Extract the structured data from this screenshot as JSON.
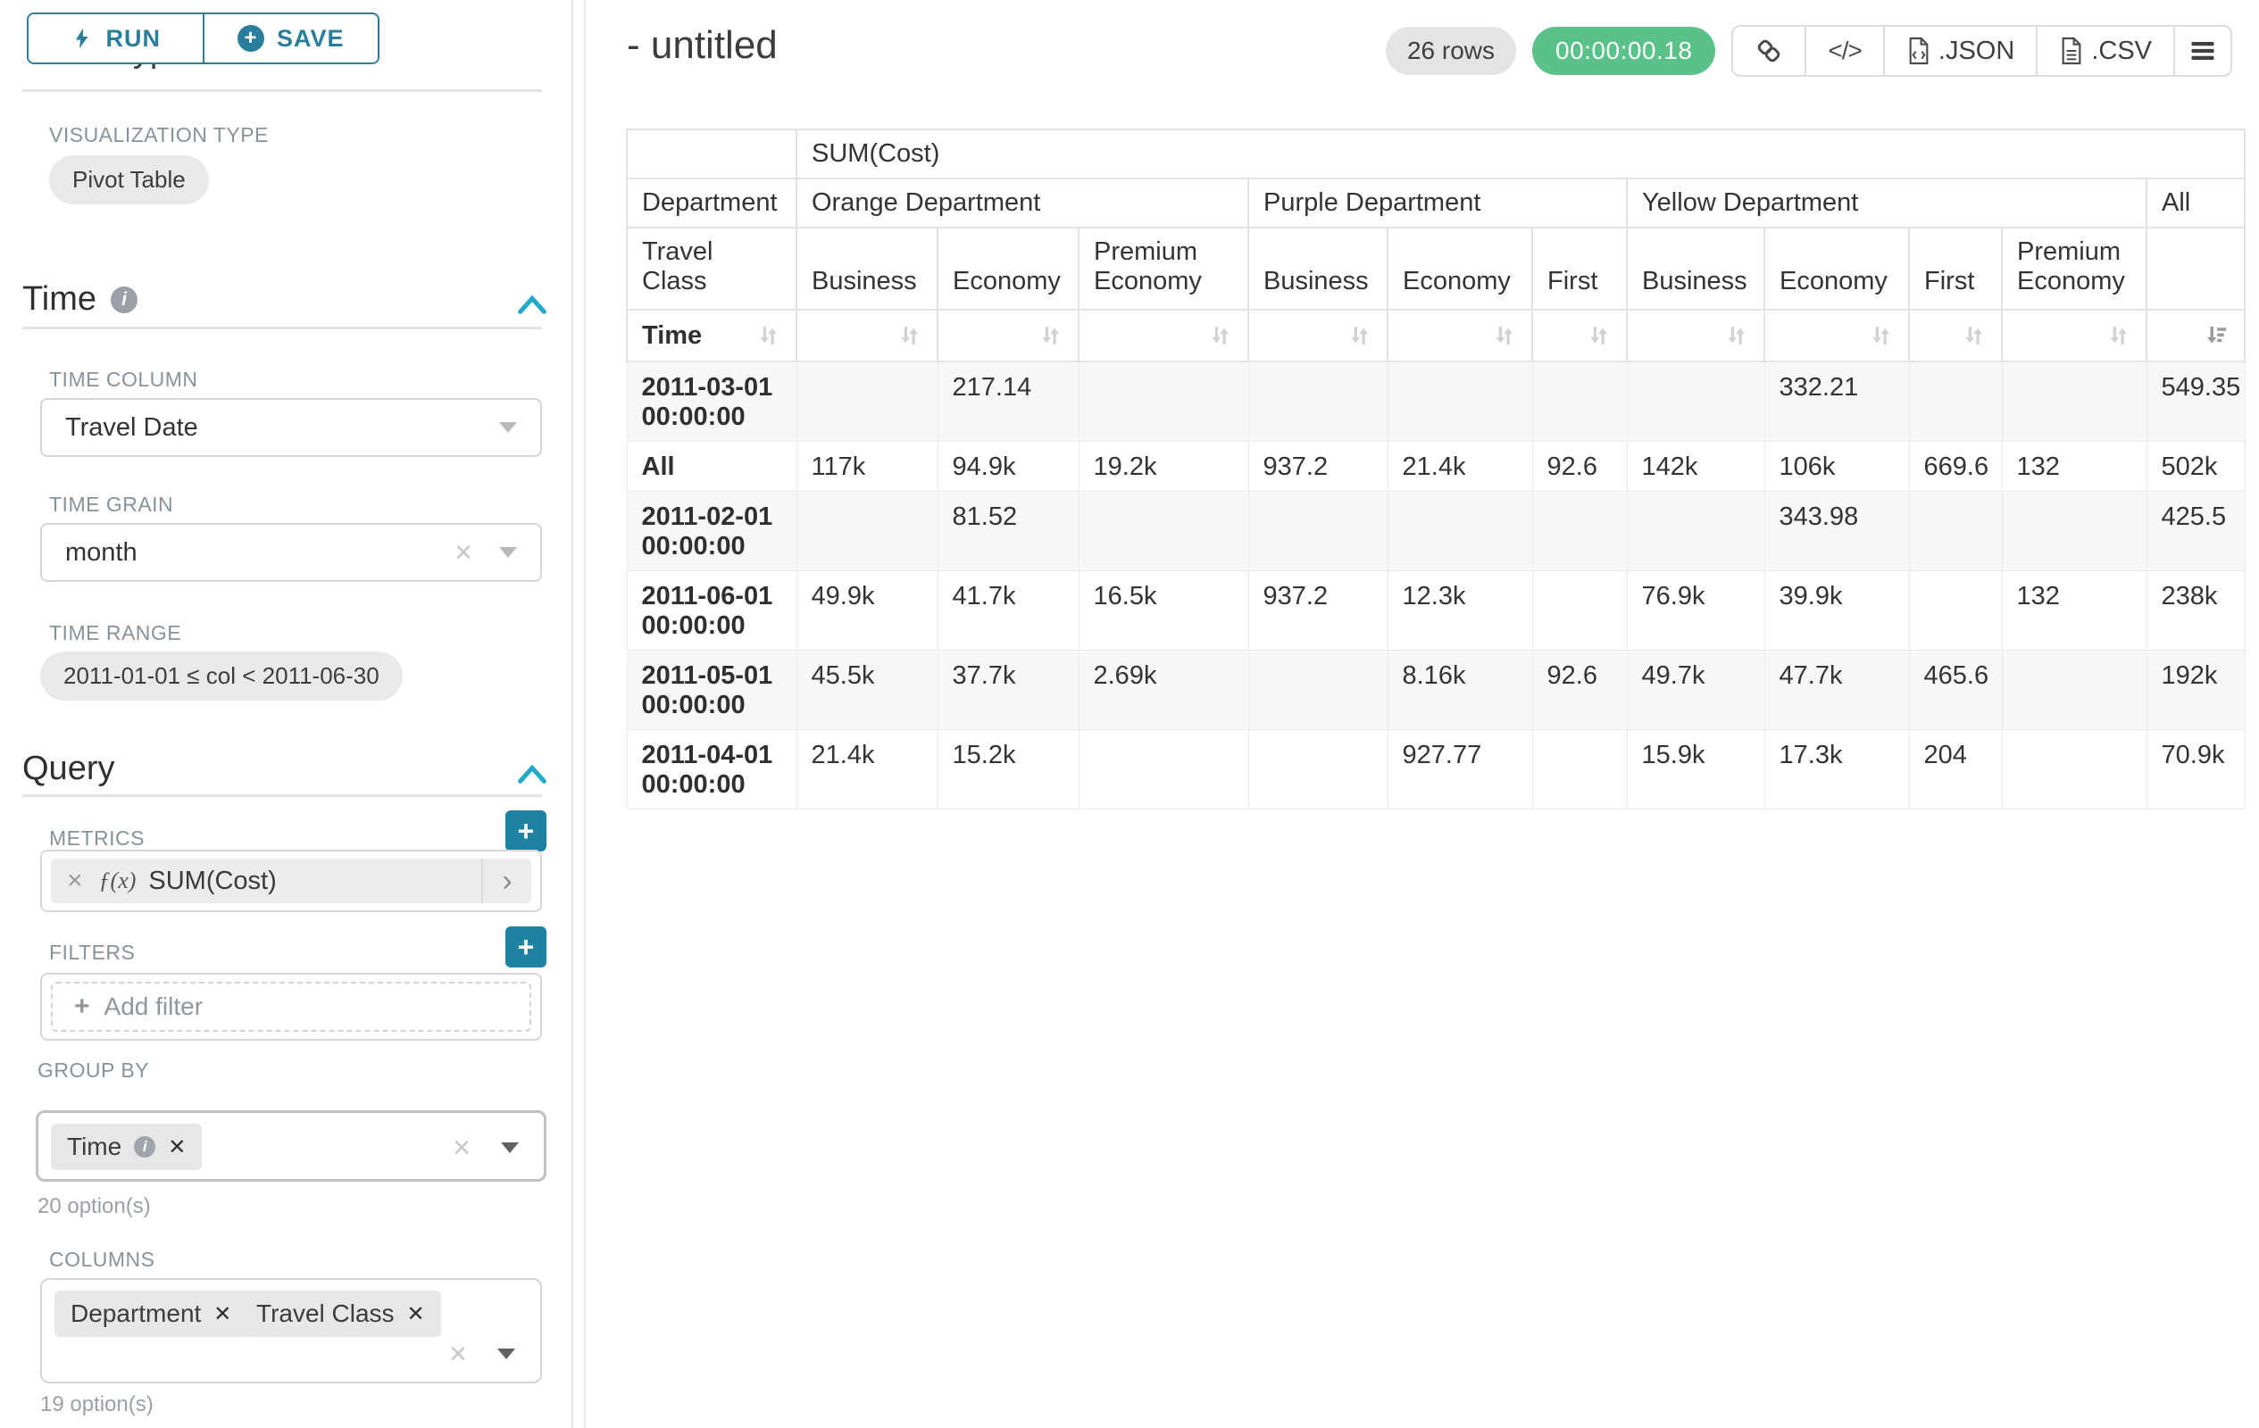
{
  "colors": {
    "accent_teal": "#2a7e9d",
    "accent_bright": "#1fa8c9",
    "success_green": "#5ac189",
    "chip_gray": "#e7e7e7",
    "stripe_gray": "#f7f7f7"
  },
  "left_panel": {
    "run_label": "RUN",
    "save_label": "SAVE",
    "chart_type_heading": "Chart Type",
    "viz_type_label": "VISUALIZATION TYPE",
    "viz_type_value": "Pivot Table",
    "time_section": {
      "title": "Time",
      "time_column_label": "TIME COLUMN",
      "time_column_value": "Travel Date",
      "time_grain_label": "TIME GRAIN",
      "time_grain_value": "month",
      "time_range_label": "TIME RANGE",
      "time_range_value": "2011-01-01 ≤ col < 2011-06-30"
    },
    "query_section": {
      "title": "Query",
      "metrics_label": "METRICS",
      "metric_prefix": "ƒ(x)",
      "metric_value": "SUM(Cost)",
      "filters_label": "FILTERS",
      "add_filter_label": "Add filter",
      "group_by_label": "GROUP BY",
      "group_by_chip": "Time",
      "group_by_options": "20 option(s)",
      "columns_label": "COLUMNS",
      "columns_chips": [
        "Department",
        "Travel Class"
      ],
      "columns_options": "19 option(s)"
    }
  },
  "header": {
    "title": "- untitled",
    "row_count": "26 rows",
    "query_time": "00:00:00.18",
    "code_glyph": "</>",
    "export_json_label": ".JSON",
    "export_csv_label": ".CSV"
  },
  "table": {
    "metric_header": "SUM(Cost)",
    "corner_row2": "Department",
    "corner_row3": "Travel Class",
    "corner_row4": "Time",
    "groups": [
      {
        "label": "Orange Department",
        "span": 3
      },
      {
        "label": "Purple Department",
        "span": 3
      },
      {
        "label": "Yellow Department",
        "span": 4
      },
      {
        "label": "All",
        "span": 1
      }
    ],
    "classes": [
      "Business",
      "Economy",
      "Premium Economy",
      "Business",
      "Economy",
      "First",
      "Business",
      "Economy",
      "First",
      "Premium Economy",
      ""
    ],
    "rows": [
      {
        "label": "2011-03-01 00:00:00",
        "cells": [
          "",
          "217.14",
          "",
          "",
          "",
          "",
          "",
          "332.21",
          "",
          "",
          "549.35"
        ]
      },
      {
        "label": "All",
        "cells": [
          "117k",
          "94.9k",
          "19.2k",
          "937.2",
          "21.4k",
          "92.6",
          "142k",
          "106k",
          "669.6",
          "132",
          "502k"
        ]
      },
      {
        "label": "2011-02-01 00:00:00",
        "cells": [
          "",
          "81.52",
          "",
          "",
          "",
          "",
          "",
          "343.98",
          "",
          "",
          "425.5"
        ]
      },
      {
        "label": "2011-06-01 00:00:00",
        "cells": [
          "49.9k",
          "41.7k",
          "16.5k",
          "937.2",
          "12.3k",
          "",
          "76.9k",
          "39.9k",
          "",
          "132",
          "238k"
        ]
      },
      {
        "label": "2011-05-01 00:00:00",
        "cells": [
          "45.5k",
          "37.7k",
          "2.69k",
          "",
          "8.16k",
          "92.6",
          "49.7k",
          "47.7k",
          "465.6",
          "",
          "192k"
        ]
      },
      {
        "label": "2011-04-01 00:00:00",
        "cells": [
          "21.4k",
          "15.2k",
          "",
          "",
          "927.77",
          "",
          "15.9k",
          "17.3k",
          "204",
          "",
          "70.9k"
        ]
      }
    ]
  }
}
